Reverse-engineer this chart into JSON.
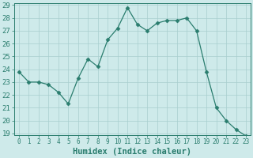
{
  "x": [
    0,
    1,
    2,
    3,
    4,
    5,
    6,
    7,
    8,
    9,
    10,
    11,
    12,
    13,
    14,
    15,
    16,
    17,
    18,
    19,
    20,
    21,
    22,
    23
  ],
  "y": [
    23.8,
    23.0,
    23.0,
    22.8,
    22.2,
    21.3,
    23.3,
    24.8,
    24.2,
    26.3,
    27.2,
    28.8,
    27.5,
    27.0,
    27.6,
    27.8,
    27.8,
    28.0,
    27.0,
    23.8,
    21.0,
    20.0,
    19.3,
    18.8
  ],
  "line_color": "#2a7d6e",
  "marker": "D",
  "marker_size": 2.5,
  "bg_color": "#ceeaea",
  "grid_color": "#a8cece",
  "xlabel": "Humidex (Indice chaleur)",
  "ylim": [
    19,
    29
  ],
  "xlim": [
    -0.5,
    23.5
  ],
  "yticks": [
    19,
    20,
    21,
    22,
    23,
    24,
    25,
    26,
    27,
    28,
    29
  ],
  "xticks": [
    0,
    1,
    2,
    3,
    4,
    5,
    6,
    7,
    8,
    9,
    10,
    11,
    12,
    13,
    14,
    15,
    16,
    17,
    18,
    19,
    20,
    21,
    22,
    23
  ],
  "tick_color": "#2a7d6e",
  "axis_color": "#2a7d6e",
  "xlabel_color": "#2a7d6e",
  "ytick_fontsize": 6.5,
  "xtick_fontsize": 5.5,
  "xlabel_fontsize": 7.5
}
